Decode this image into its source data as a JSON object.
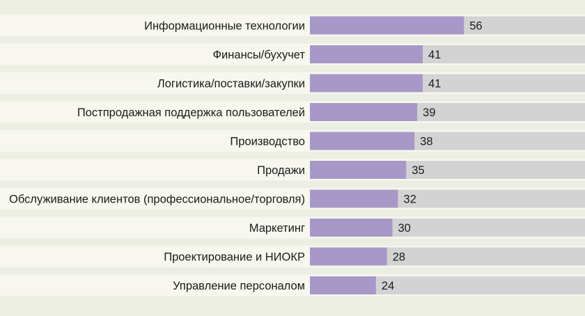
{
  "chart_data": {
    "type": "bar",
    "orientation": "horizontal",
    "categories": [
      "Информационные технологии",
      "Финансы/бухучет",
      "Логистика/поставки/закупки",
      "Постпродажная поддержка пользователей",
      "Производство",
      "Продажи",
      "Обслуживание клиентов (профессиональное/торговля)",
      "Маркетинг",
      "Проектирование и НИОКР",
      "Управление персоналом"
    ],
    "values": [
      56,
      41,
      41,
      39,
      38,
      35,
      32,
      30,
      28,
      24
    ],
    "xlim": [
      0,
      100
    ],
    "grid": false,
    "legend": "none",
    "colors": {
      "background": "#eceee3",
      "row_band": "#f7f7ef",
      "track": "#d3d3d3",
      "bar": "#a898c8",
      "text": "#1a1a1a"
    }
  }
}
